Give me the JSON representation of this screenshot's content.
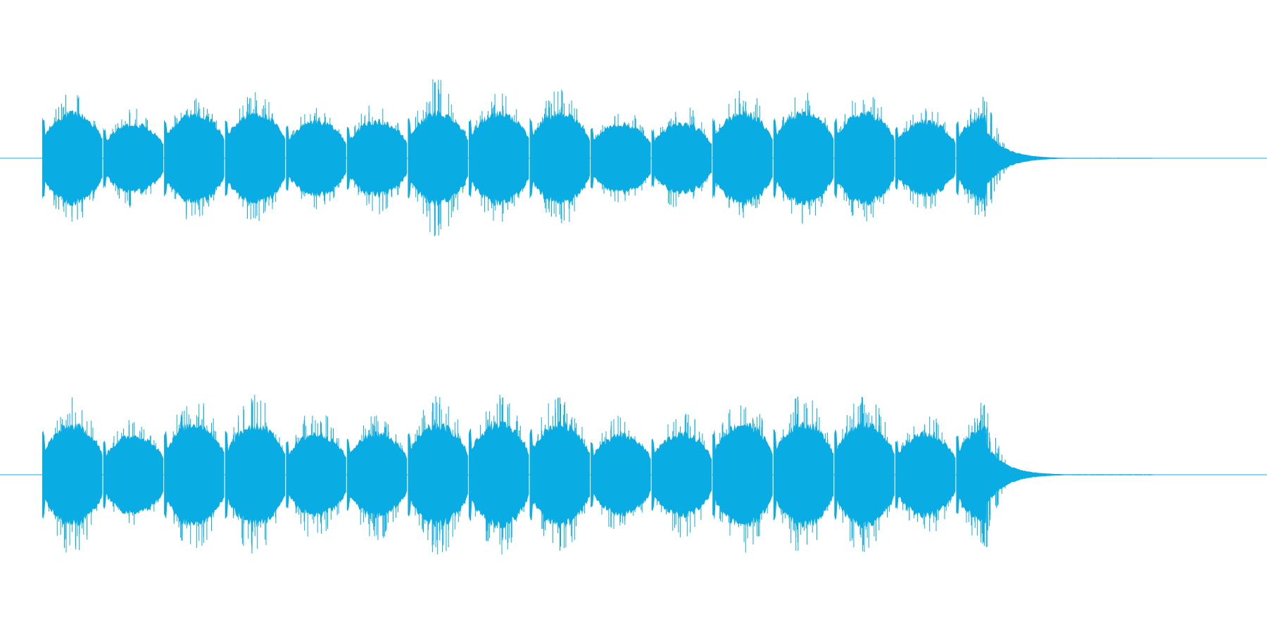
{
  "waveform": {
    "color": "#0aace4",
    "background": "#ffffff",
    "channel_count": 2,
    "sound_start_fraction": 0.0333,
    "sound_end_fraction": 0.91,
    "channels": [
      {
        "name": "",
        "bursts": [
          {
            "amplitude": 0.55,
            "peak": 0.82
          },
          {
            "amplitude": 0.42,
            "peak": 0.62
          },
          {
            "amplitude": 0.55,
            "peak": 0.8
          },
          {
            "amplitude": 0.55,
            "peak": 0.82
          },
          {
            "amplitude": 0.45,
            "peak": 0.65
          },
          {
            "amplitude": 0.45,
            "peak": 0.7
          },
          {
            "amplitude": 0.55,
            "peak": 1.0
          },
          {
            "amplitude": 0.55,
            "peak": 0.82
          },
          {
            "amplitude": 0.55,
            "peak": 0.85
          },
          {
            "amplitude": 0.42,
            "peak": 0.64
          },
          {
            "amplitude": 0.42,
            "peak": 0.66
          },
          {
            "amplitude": 0.55,
            "peak": 0.9
          },
          {
            "amplitude": 0.55,
            "peak": 0.82
          },
          {
            "amplitude": 0.55,
            "peak": 0.82
          },
          {
            "amplitude": 0.45,
            "peak": 0.66
          },
          {
            "amplitude": 0.52,
            "peak": 0.8
          }
        ]
      },
      {
        "name": "",
        "bursts": [
          {
            "amplitude": 0.6,
            "peak": 1.0
          },
          {
            "amplitude": 0.48,
            "peak": 0.72
          },
          {
            "amplitude": 0.62,
            "peak": 1.0
          },
          {
            "amplitude": 0.6,
            "peak": 1.0
          },
          {
            "amplitude": 0.5,
            "peak": 0.82
          },
          {
            "amplitude": 0.5,
            "peak": 0.82
          },
          {
            "amplitude": 0.6,
            "peak": 1.0
          },
          {
            "amplitude": 0.62,
            "peak": 1.0
          },
          {
            "amplitude": 0.62,
            "peak": 1.0
          },
          {
            "amplitude": 0.48,
            "peak": 0.74
          },
          {
            "amplitude": 0.5,
            "peak": 0.8
          },
          {
            "amplitude": 0.62,
            "peak": 1.0
          },
          {
            "amplitude": 0.62,
            "peak": 1.0
          },
          {
            "amplitude": 0.62,
            "peak": 1.0
          },
          {
            "amplitude": 0.5,
            "peak": 0.78
          },
          {
            "amplitude": 0.58,
            "peak": 0.92
          }
        ]
      }
    ]
  }
}
